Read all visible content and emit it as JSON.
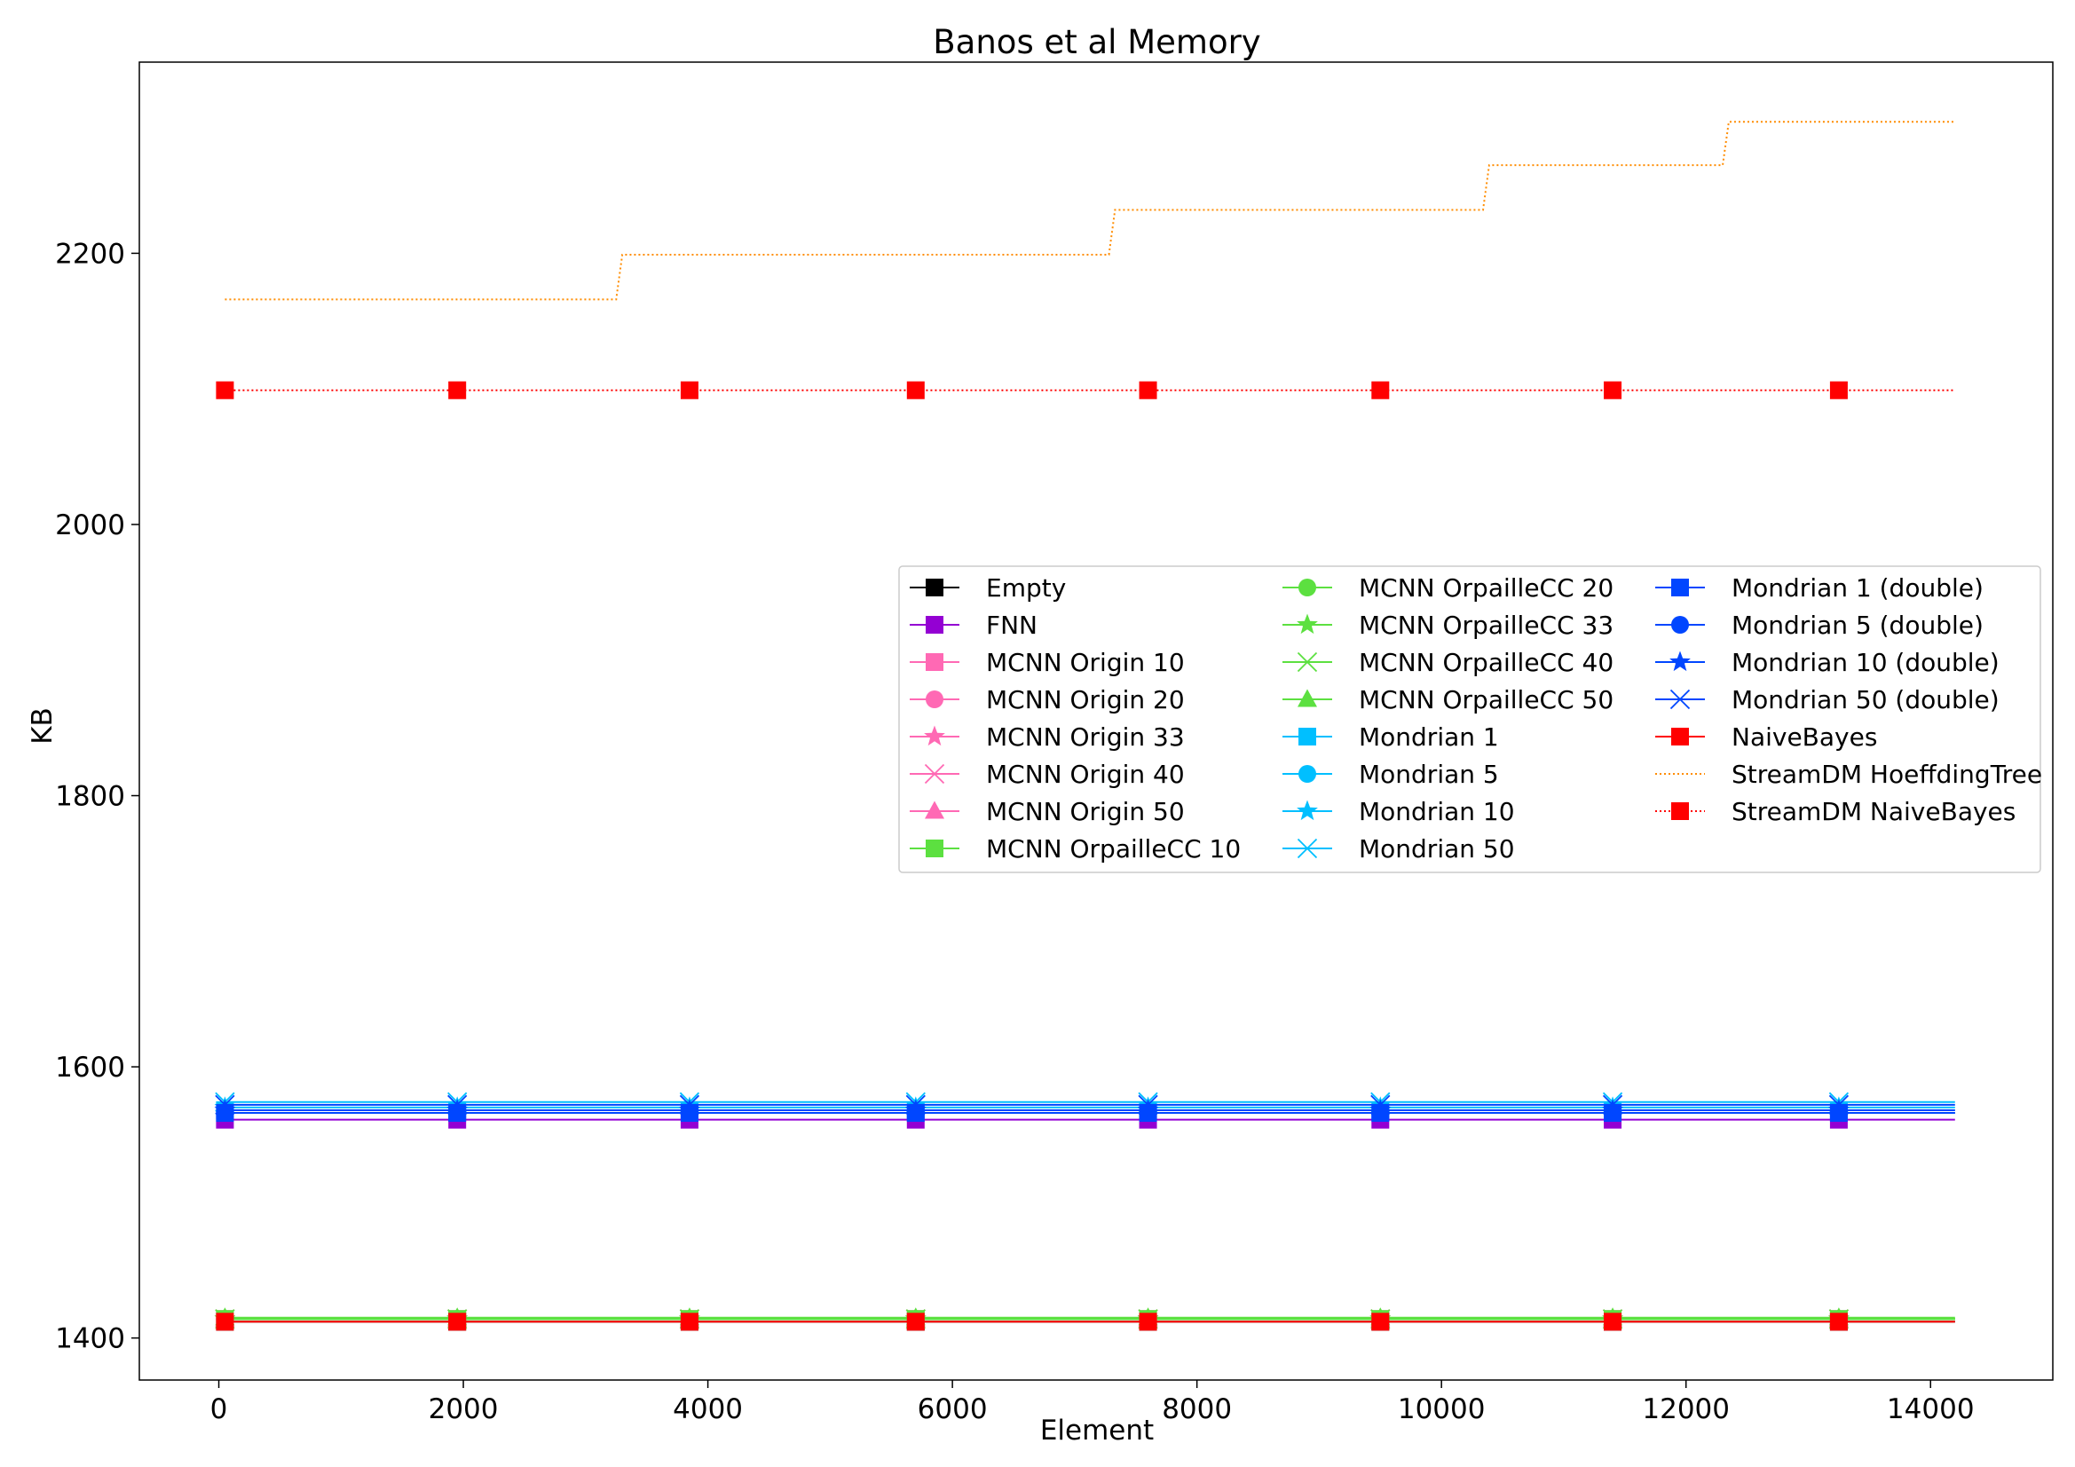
{
  "chart_data": {
    "type": "line",
    "title": "Banos et al Memory",
    "xlabel": "Element",
    "ylabel": "KB",
    "xlim": [
      -650,
      15000
    ],
    "ylim": [
      1369,
      2341
    ],
    "xticks": [
      0,
      2000,
      4000,
      6000,
      8000,
      10000,
      12000,
      14000
    ],
    "yticks": [
      1400,
      1600,
      1800,
      2000,
      2200
    ],
    "grid": false,
    "legend_position": "center-right",
    "legend_columns": 3,
    "marker_x": [
      50,
      1950,
      3850,
      5700,
      7600,
      9500,
      11400,
      13250
    ],
    "series": [
      {
        "name": "Empty",
        "color": "#000000",
        "marker": "square",
        "dash": "solid",
        "x": [
          50,
          14200
        ],
        "y": [
          1412,
          1412
        ]
      },
      {
        "name": "FNN",
        "color": "#9400D3",
        "marker": "square",
        "dash": "solid",
        "x": [
          50,
          14200
        ],
        "y": [
          1561,
          1561
        ]
      },
      {
        "name": "MCNN Origin 10",
        "color": "#FF69B4",
        "marker": "square",
        "dash": "solid",
        "x": [
          50,
          14200
        ],
        "y": [
          1414,
          1414
        ]
      },
      {
        "name": "MCNN Origin 20",
        "color": "#FF69B4",
        "marker": "circle",
        "dash": "solid",
        "x": [
          50,
          14200
        ],
        "y": [
          1414,
          1414
        ]
      },
      {
        "name": "MCNN Origin 33",
        "color": "#FF69B4",
        "marker": "star",
        "dash": "solid",
        "x": [
          50,
          14200
        ],
        "y": [
          1414,
          1414
        ]
      },
      {
        "name": "MCNN Origin 40",
        "color": "#FF69B4",
        "marker": "x",
        "dash": "solid",
        "x": [
          50,
          14200
        ],
        "y": [
          1414,
          1414
        ]
      },
      {
        "name": "MCNN Origin 50",
        "color": "#FF69B4",
        "marker": "triangle",
        "dash": "solid",
        "x": [
          50,
          14200
        ],
        "y": [
          1414,
          1414
        ]
      },
      {
        "name": "MCNN OrpailleCC 10",
        "color": "#5CE040",
        "marker": "square",
        "dash": "solid",
        "x": [
          50,
          14200
        ],
        "y": [
          1414,
          1414
        ]
      },
      {
        "name": "MCNN OrpailleCC 20",
        "color": "#5CE040",
        "marker": "circle",
        "dash": "solid",
        "x": [
          50,
          14200
        ],
        "y": [
          1414,
          1414
        ]
      },
      {
        "name": "MCNN OrpailleCC 33",
        "color": "#5CE040",
        "marker": "star",
        "dash": "solid",
        "x": [
          50,
          14200
        ],
        "y": [
          1414,
          1414
        ]
      },
      {
        "name": "MCNN OrpailleCC 40",
        "color": "#5CE040",
        "marker": "x",
        "dash": "solid",
        "x": [
          50,
          14200
        ],
        "y": [
          1414,
          1414
        ]
      },
      {
        "name": "MCNN OrpailleCC 50",
        "color": "#5CE040",
        "marker": "triangle",
        "dash": "solid",
        "x": [
          50,
          14200
        ],
        "y": [
          1415,
          1415
        ]
      },
      {
        "name": "Mondrian 1",
        "color": "#00BFFF",
        "marker": "square",
        "dash": "solid",
        "x": [
          50,
          14200
        ],
        "y": [
          1568,
          1568
        ]
      },
      {
        "name": "Mondrian 5",
        "color": "#00BFFF",
        "marker": "circle",
        "dash": "solid",
        "x": [
          50,
          14200
        ],
        "y": [
          1566,
          1566
        ]
      },
      {
        "name": "Mondrian 10",
        "color": "#00BFFF",
        "marker": "star",
        "dash": "solid",
        "x": [
          50,
          14200
        ],
        "y": [
          1570,
          1570
        ]
      },
      {
        "name": "Mondrian 50",
        "color": "#00BFFF",
        "marker": "x",
        "dash": "solid",
        "x": [
          50,
          14200
        ],
        "y": [
          1574,
          1574
        ]
      },
      {
        "name": "Mondrian 1 (double)",
        "color": "#0046FF",
        "marker": "square",
        "dash": "solid",
        "x": [
          50,
          14200
        ],
        "y": [
          1566,
          1566
        ]
      },
      {
        "name": "Mondrian 5 (double)",
        "color": "#0046FF",
        "marker": "circle",
        "dash": "solid",
        "x": [
          50,
          14200
        ],
        "y": [
          1566,
          1566
        ]
      },
      {
        "name": "Mondrian 10 (double)",
        "color": "#0046FF",
        "marker": "star",
        "dash": "solid",
        "x": [
          50,
          14200
        ],
        "y": [
          1568,
          1568
        ]
      },
      {
        "name": "Mondrian 50 (double)",
        "color": "#0046FF",
        "marker": "x",
        "dash": "solid",
        "x": [
          50,
          14200
        ],
        "y": [
          1572,
          1572
        ]
      },
      {
        "name": "NaiveBayes",
        "color": "#FF0000",
        "marker": "square",
        "dash": "solid",
        "x": [
          50,
          14200
        ],
        "y": [
          1412,
          1412
        ]
      },
      {
        "name": "StreamDM HoeffdingTree",
        "color": "#FF8C00",
        "marker": "none",
        "dash": "dotted",
        "x": [
          50,
          3250,
          3300,
          7280,
          7330,
          10340,
          10390,
          12300,
          12350,
          14200
        ],
        "y": [
          2166,
          2166,
          2199,
          2199,
          2232,
          2232,
          2265,
          2265,
          2297,
          2297
        ]
      },
      {
        "name": "StreamDM NaiveBayes",
        "color": "#FF0000",
        "marker": "square",
        "dash": "dotted",
        "x": [
          50,
          14200
        ],
        "y": [
          2099,
          2099
        ]
      }
    ]
  }
}
